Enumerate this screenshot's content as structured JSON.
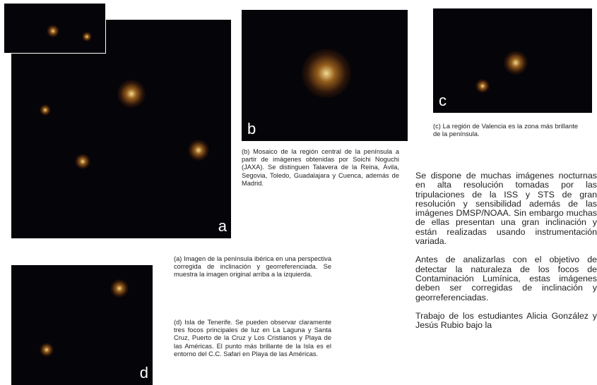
{
  "figures": [
    {
      "label": "a",
      "caption": "(a) Imagen de la península ibérica en una perspectiva corregida de inclinación y georreferenciada. Se muestra la imagen original  arriba a la izquierda."
    },
    {
      "label": "b",
      "caption": "(b) Mosaico de la región central de la península a partir de imágenes obtenidas por Soichi Noguchi (JAXA). Se distinguen Talavera de la Reina, Ávila, Segovia, Toledo, Guadalajara y Cuenca, además de Madrid."
    },
    {
      "label": "c",
      "caption": "(c) La región de Valencia es la zona más brillante de la península."
    },
    {
      "label": "d",
      "caption": "(d) Isla de Tenerife. Se pueden observar claramente tres focos principales de luz en La Laguna y Santa Cruz, Puerto de la Cruz y Los Cristianos y Playa de las Américas. El punto más brillante de la Isla es el entorno del C.C. Safari en Playa de las Américas."
    }
  ],
  "body": {
    "paragraphs": [
      "Se dispone de muchas imágenes nocturnas en alta resolución tomadas por las tripulaciones de la ISS y STS de gran resolución y sensibilidad además de las imágenes DMSP/NOAA. Sin embargo muchas de ellas presentan una gran inclinación y están realizadas usando instrumentación variada.",
      "Antes de  analizarlas con el objetivo de detectar la naturaleza de los focos de Contaminación Lumínica, estas imágenes deben ser corregidas de inclinación y georreferenciadas.",
      "Trabajo de los estudiantes Alicia González y Jesús Rubio bajo la"
    ]
  }
}
